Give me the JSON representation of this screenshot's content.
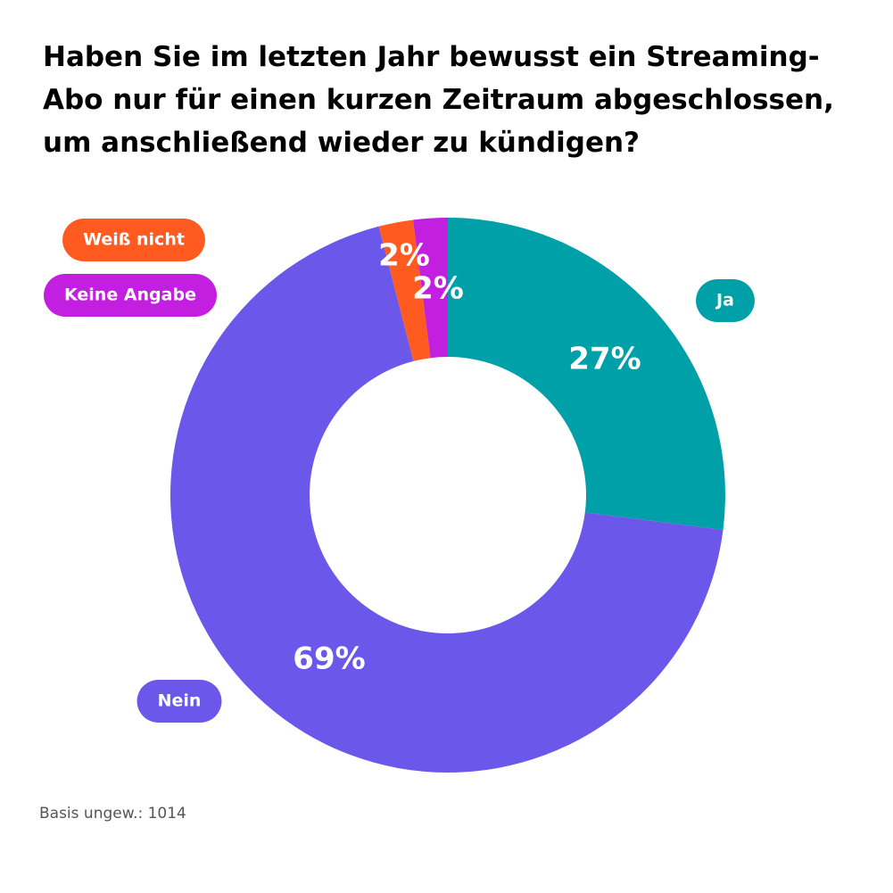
{
  "chart_data": {
    "type": "donut",
    "title": "Haben Sie im letzten Jahr bewusst ein Streaming-Abo nur für einen kurzen Zeitraum abgeschlossen, um anschließend wieder zu kündigen?",
    "categories": [
      "Ja",
      "Nein",
      "Weiß nicht",
      "Keine Angabe"
    ],
    "values": [
      27,
      69,
      2,
      2
    ],
    "value_labels": [
      "27%",
      "69%",
      "2%",
      "2%"
    ],
    "colors": [
      "#00a0a8",
      "#6b57ea",
      "#ff5a1f",
      "#c21fe0"
    ],
    "note": "Basis ungew.: 1014"
  }
}
